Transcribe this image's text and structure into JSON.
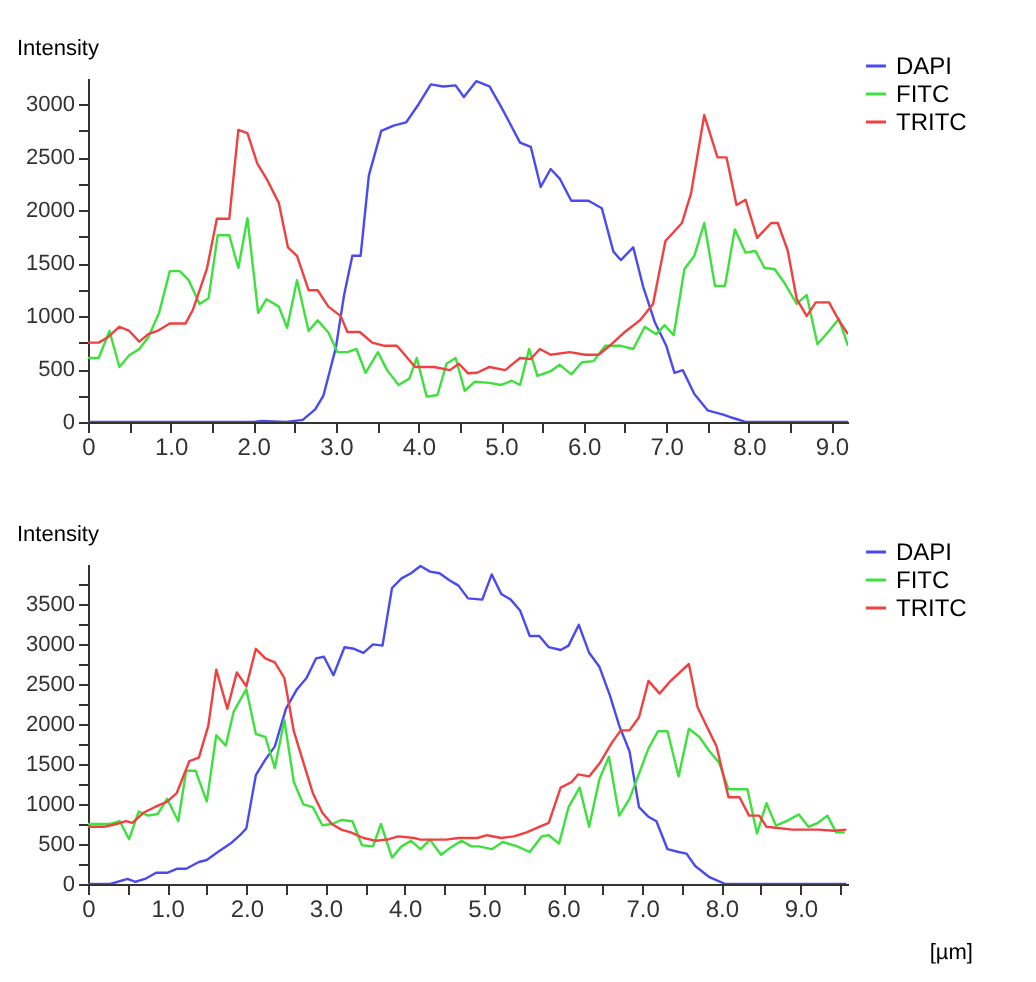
{
  "chart_data": [
    {
      "type": "line",
      "ylabel": "Intensity",
      "legend": "top right",
      "xlim": [
        0,
        9.2
      ],
      "ylim": [
        0,
        3250
      ],
      "xticks": [
        0,
        {
          "value": 0.5,
          "label": null
        },
        {
          "value": 1,
          "label": "1.0"
        },
        {
          "value": 1.5,
          "label": null
        },
        {
          "value": 2,
          "label": "2.0"
        },
        {
          "value": 2.5,
          "label": null
        },
        {
          "value": 3,
          "label": "3.0"
        },
        {
          "value": 3.5,
          "label": null
        },
        {
          "value": 4,
          "label": "4.0"
        },
        {
          "value": 4.5,
          "label": null
        },
        {
          "value": 5,
          "label": "5.0"
        },
        {
          "value": 5.5,
          "label": null
        },
        {
          "value": 6,
          "label": "6.0"
        },
        {
          "value": 6.5,
          "label": null
        },
        {
          "value": 7,
          "label": "7.0"
        },
        {
          "value": 7.5,
          "label": null
        },
        {
          "value": 8,
          "label": "8.0"
        },
        {
          "value": 8.5,
          "label": null
        },
        {
          "value": 9,
          "label": "9.0"
        }
      ],
      "yticks": [
        0,
        {
          "value": 250,
          "label": null
        },
        500,
        {
          "value": 750,
          "label": null
        },
        1000,
        {
          "value": 1250,
          "label": null
        },
        1500,
        {
          "value": 1750,
          "label": null
        },
        2000,
        {
          "value": 2250,
          "label": null
        },
        2500,
        {
          "value": 2750,
          "label": null
        },
        3000
      ],
      "series": [
        {
          "name": "DAPI",
          "color": "#4a4af0",
          "x": [
            0,
            2.0,
            2.1,
            2.4,
            2.6,
            2.75,
            2.85,
            3.0,
            3.1,
            3.2,
            3.3,
            3.4,
            3.55,
            3.7,
            3.85,
            4.0,
            4.15,
            4.3,
            4.45,
            4.55,
            4.7,
            4.86,
            5.0,
            5.23,
            5.36,
            5.48,
            5.6,
            5.71,
            5.85,
            6.06,
            6.22,
            6.36,
            6.45,
            6.6,
            6.72,
            6.86,
            7.0,
            7.1,
            7.2,
            7.34,
            7.5,
            7.69,
            7.8,
            7.96,
            9.2
          ],
          "values": [
            0,
            0,
            10,
            0,
            20,
            120,
            250,
            700,
            1200,
            1570,
            1570,
            2330,
            2750,
            2800,
            2830,
            3000,
            3190,
            3170,
            3180,
            3070,
            3220,
            3170,
            2980,
            2640,
            2600,
            2220,
            2390,
            2300,
            2090,
            2090,
            2020,
            1610,
            1530,
            1650,
            1280,
            945,
            720,
            465,
            490,
            265,
            110,
            70,
            40,
            0,
            0
          ]
        },
        {
          "name": "FITC",
          "color": "#3ee03e",
          "x": [
            0,
            0.13,
            0.26,
            0.38,
            0.5,
            0.62,
            0.73,
            0.86,
            0.99,
            1.11,
            1.22,
            1.35,
            1.46,
            1.57,
            1.71,
            1.82,
            1.93,
            2.06,
            2.16,
            2.31,
            2.41,
            2.53,
            2.67,
            2.78,
            2.91,
            3.02,
            3.14,
            3.25,
            3.36,
            3.51,
            3.62,
            3.76,
            3.89,
            3.98,
            4.1,
            4.23,
            4.34,
            4.45,
            4.56,
            4.68,
            4.86,
            5.0,
            5.13,
            5.23,
            5.34,
            5.44,
            5.6,
            5.71,
            5.85,
            5.98,
            6.12,
            6.26,
            6.45,
            6.6,
            6.74,
            6.88,
            6.98,
            7.09,
            7.22,
            7.34,
            7.46,
            7.59,
            7.71,
            7.83,
            7.96,
            8.08,
            8.19,
            8.31,
            8.43,
            8.58,
            8.7,
            8.83,
            8.97,
            9.09,
            9.2
          ],
          "values": [
            605,
            605,
            860,
            520,
            630,
            690,
            800,
            1030,
            1425,
            1425,
            1340,
            1115,
            1170,
            1765,
            1765,
            1455,
            1925,
            1030,
            1160,
            1090,
            890,
            1340,
            860,
            960,
            845,
            660,
            660,
            690,
            465,
            660,
            490,
            350,
            410,
            605,
            240,
            255,
            550,
            605,
            295,
            380,
            370,
            350,
            390,
            350,
            690,
            435,
            480,
            540,
            450,
            565,
            575,
            720,
            720,
            690,
            900,
            830,
            915,
            820,
            1445,
            1570,
            1880,
            1285,
            1285,
            1820,
            1600,
            1615,
            1455,
            1445,
            1315,
            1115,
            1200,
            735,
            860,
            975,
            720
          ]
        },
        {
          "name": "TRITC",
          "color": "#f04040",
          "x": [
            0,
            0.13,
            0.24,
            0.38,
            0.5,
            0.62,
            0.73,
            0.84,
            0.99,
            1.18,
            1.27,
            1.44,
            1.56,
            1.71,
            1.82,
            1.93,
            2.05,
            2.16,
            2.31,
            2.42,
            2.53,
            2.67,
            2.78,
            2.91,
            3.06,
            3.14,
            3.29,
            3.44,
            3.59,
            3.74,
            3.96,
            4.19,
            4.38,
            4.49,
            4.6,
            4.71,
            4.86,
            5.05,
            5.23,
            5.36,
            5.47,
            5.6,
            5.83,
            6.02,
            6.18,
            6.33,
            6.49,
            6.68,
            6.84,
            6.99,
            7.19,
            7.3,
            7.46,
            7.62,
            7.73,
            7.85,
            7.96,
            8.1,
            8.27,
            8.35,
            8.47,
            8.58,
            8.7,
            8.81,
            8.97,
            9.09,
            9.2
          ],
          "values": [
            750,
            750,
            800,
            900,
            860,
            760,
            830,
            860,
            930,
            930,
            1060,
            1450,
            1920,
            1920,
            2760,
            2730,
            2440,
            2300,
            2070,
            1650,
            1570,
            1245,
            1245,
            1090,
            1000,
            850,
            850,
            750,
            720,
            720,
            520,
            520,
            490,
            550,
            460,
            465,
            520,
            490,
            605,
            595,
            690,
            635,
            660,
            635,
            635,
            730,
            845,
            960,
            1115,
            1710,
            1880,
            2160,
            2900,
            2500,
            2500,
            2050,
            2100,
            1740,
            1880,
            1880,
            1620,
            1160,
            1000,
            1130,
            1130,
            960,
            830
          ]
        }
      ]
    },
    {
      "type": "line",
      "ylabel": "Intensity",
      "xlabel": "[µm]",
      "legend": "top right",
      "xlim": [
        0,
        9.6
      ],
      "ylim": [
        0,
        4000
      ],
      "xticks": [
        0,
        {
          "value": 0.5,
          "label": null
        },
        {
          "value": 1,
          "label": "1.0"
        },
        {
          "value": 1.5,
          "label": null
        },
        {
          "value": 2,
          "label": "2.0"
        },
        {
          "value": 2.5,
          "label": null
        },
        {
          "value": 3,
          "label": "3.0"
        },
        {
          "value": 3.5,
          "label": null
        },
        {
          "value": 4,
          "label": "4.0"
        },
        {
          "value": 4.5,
          "label": null
        },
        {
          "value": 5,
          "label": "5.0"
        },
        {
          "value": 5.5,
          "label": null
        },
        {
          "value": 6,
          "label": "6.0"
        },
        {
          "value": 6.5,
          "label": null
        },
        {
          "value": 7,
          "label": "7.0"
        },
        {
          "value": 7.5,
          "label": null
        },
        {
          "value": 8,
          "label": "8.0"
        },
        {
          "value": 8.5,
          "label": null
        },
        {
          "value": 9,
          "label": "9.0"
        },
        {
          "value": 9.5,
          "label": null
        }
      ],
      "yticks": [
        0,
        {
          "value": 250,
          "label": null
        },
        500,
        {
          "value": 750,
          "label": null
        },
        1000,
        {
          "value": 1250,
          "label": null
        },
        1500,
        {
          "value": 1750,
          "label": null
        },
        2000,
        {
          "value": 2250,
          "label": null
        },
        2500,
        {
          "value": 2750,
          "label": null
        },
        3000,
        {
          "value": 3250,
          "label": null
        },
        3500,
        {
          "value": 3750,
          "label": null
        }
      ],
      "series": [
        {
          "name": "DAPI",
          "color": "#4a4af0",
          "x": [
            0,
            0.28,
            0.5,
            0.6,
            0.72,
            0.86,
            1.0,
            1.12,
            1.24,
            1.4,
            1.5,
            1.64,
            1.8,
            1.92,
            2.0,
            2.12,
            2.24,
            2.36,
            2.5,
            2.64,
            2.76,
            2.88,
            2.98,
            3.1,
            3.24,
            3.36,
            3.48,
            3.6,
            3.72,
            3.84,
            3.96,
            4.08,
            4.2,
            4.32,
            4.44,
            4.56,
            4.68,
            4.8,
            4.98,
            5.1,
            5.22,
            5.34,
            5.46,
            5.58,
            5.7,
            5.82,
            5.97,
            6.07,
            6.2,
            6.33,
            6.46,
            6.59,
            6.71,
            6.84,
            6.96,
            7.08,
            7.18,
            7.32,
            7.46,
            7.56,
            7.67,
            7.85,
            8.05,
            9.58
          ],
          "values": [
            0,
            0,
            63,
            28,
            63,
            140,
            140,
            190,
            190,
            275,
            300,
            400,
            505,
            610,
            695,
            1360,
            1555,
            1720,
            2190,
            2435,
            2575,
            2820,
            2840,
            2610,
            2960,
            2940,
            2890,
            2995,
            2980,
            3700,
            3820,
            3885,
            3975,
            3905,
            3885,
            3800,
            3730,
            3570,
            3555,
            3870,
            3625,
            3555,
            3415,
            3100,
            3100,
            2960,
            2925,
            2980,
            3240,
            2890,
            2715,
            2365,
            1980,
            1660,
            960,
            840,
            785,
            435,
            400,
            380,
            225,
            85,
            0,
            0
          ]
        },
        {
          "name": "FITC",
          "color": "#3ee03e",
          "x": [
            0,
            0.28,
            0.4,
            0.52,
            0.64,
            0.76,
            0.88,
            1.0,
            1.14,
            1.24,
            1.36,
            1.5,
            1.62,
            1.74,
            1.84,
            2.0,
            2.12,
            2.24,
            2.36,
            2.48,
            2.6,
            2.72,
            2.84,
            2.96,
            3.08,
            3.2,
            3.34,
            3.46,
            3.6,
            3.7,
            3.84,
            3.96,
            4.08,
            4.2,
            4.32,
            4.46,
            4.58,
            4.72,
            4.84,
            4.94,
            5.1,
            5.24,
            5.42,
            5.58,
            5.73,
            5.82,
            5.95,
            6.07,
            6.21,
            6.33,
            6.46,
            6.58,
            6.71,
            6.84,
            6.96,
            7.08,
            7.2,
            7.32,
            7.46,
            7.59,
            7.72,
            7.85,
            7.97,
            8.09,
            8.21,
            8.33,
            8.45,
            8.57,
            8.69,
            8.82,
            8.98,
            9.1,
            9.22,
            9.34,
            9.45,
            9.56
          ],
          "values": [
            750,
            750,
            785,
            560,
            905,
            855,
            875,
            1065,
            785,
            1415,
            1415,
            1030,
            1860,
            1730,
            2155,
            2435,
            1875,
            1840,
            1450,
            2050,
            1275,
            995,
            960,
            735,
            750,
            800,
            785,
            485,
            470,
            750,
            330,
            470,
            540,
            435,
            555,
            365,
            455,
            540,
            470,
            470,
            435,
            525,
            470,
            400,
            595,
            610,
            505,
            960,
            1205,
            715,
            1310,
            1590,
            855,
            1065,
            1380,
            1695,
            1910,
            1910,
            1345,
            1940,
            1840,
            1660,
            1520,
            1185,
            1185,
            1185,
            630,
            1010,
            730,
            785,
            870,
            715,
            765,
            855,
            645,
            645
          ]
        },
        {
          "name": "TRITC",
          "color": "#f04040",
          "x": [
            0,
            0.2,
            0.36,
            0.48,
            0.56,
            0.7,
            0.84,
            1.0,
            1.12,
            1.28,
            1.4,
            1.52,
            1.62,
            1.76,
            1.88,
            2.0,
            2.12,
            2.24,
            2.36,
            2.48,
            2.6,
            2.72,
            2.84,
            2.96,
            3.08,
            3.2,
            3.32,
            3.48,
            3.64,
            3.8,
            3.92,
            4.12,
            4.2,
            4.36,
            4.52,
            4.68,
            4.92,
            5.04,
            5.22,
            5.38,
            5.54,
            5.7,
            5.82,
            5.97,
            6.11,
            6.19,
            6.33,
            6.47,
            6.62,
            6.73,
            6.84,
            6.96,
            7.08,
            7.22,
            7.36,
            7.59,
            7.7,
            7.81,
            7.94,
            8.09,
            8.23,
            8.35,
            8.48,
            8.57,
            8.9,
            9.22,
            9.42,
            9.58
          ],
          "values": [
            715,
            715,
            750,
            785,
            765,
            890,
            960,
            1030,
            1135,
            1535,
            1580,
            1980,
            2680,
            2190,
            2645,
            2470,
            2940,
            2820,
            2770,
            2575,
            1910,
            1520,
            1135,
            890,
            750,
            680,
            645,
            575,
            540,
            560,
            595,
            575,
            555,
            555,
            555,
            575,
            575,
            610,
            575,
            595,
            645,
            715,
            765,
            1205,
            1275,
            1370,
            1345,
            1520,
            1770,
            1920,
            1920,
            2085,
            2540,
            2380,
            2540,
            2750,
            2210,
            1980,
            1720,
            1085,
            1085,
            855,
            855,
            715,
            680,
            680,
            665,
            680
          ]
        }
      ]
    }
  ]
}
